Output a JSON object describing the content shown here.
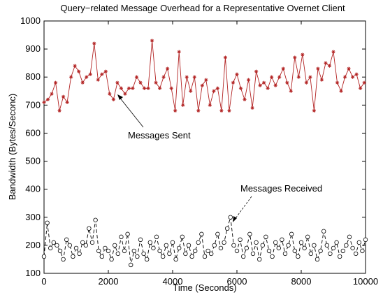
{
  "chart_data": {
    "type": "line",
    "title": "Query−related Message Overhead for a Representative Overnet Client",
    "xlabel": "Time (Seconds)",
    "ylabel": "Bandwidth (Bytes/Seconc)",
    "xlim": [
      0,
      10000
    ],
    "ylim": [
      100,
      1000
    ],
    "xticks": [
      0,
      2000,
      4000,
      6000,
      8000,
      10000
    ],
    "yticks": [
      100,
      200,
      300,
      400,
      500,
      600,
      700,
      800,
      900,
      1000
    ],
    "grid": false,
    "series": [
      {
        "name": "Messages Sent",
        "color": "#b22222",
        "marker": "star",
        "linestyle": "solid",
        "x": [
          0,
          120,
          240,
          360,
          480,
          600,
          720,
          840,
          960,
          1080,
          1200,
          1320,
          1440,
          1560,
          1680,
          1800,
          1920,
          2040,
          2160,
          2280,
          2400,
          2520,
          2640,
          2760,
          2880,
          3000,
          3120,
          3240,
          3360,
          3480,
          3600,
          3720,
          3840,
          3960,
          4080,
          4200,
          4320,
          4440,
          4560,
          4680,
          4800,
          4920,
          5040,
          5160,
          5280,
          5400,
          5520,
          5640,
          5760,
          5880,
          6000,
          6120,
          6240,
          6360,
          6480,
          6600,
          6720,
          6840,
          6960,
          7080,
          7200,
          7320,
          7440,
          7560,
          7680,
          7800,
          7920,
          8040,
          8160,
          8280,
          8400,
          8520,
          8640,
          8760,
          8880,
          9000,
          9120,
          9240,
          9360,
          9480,
          9600,
          9720,
          9840,
          9960
        ],
        "y": [
          710,
          720,
          740,
          780,
          680,
          730,
          710,
          800,
          840,
          820,
          780,
          800,
          810,
          920,
          790,
          810,
          820,
          740,
          720,
          780,
          760,
          740,
          760,
          760,
          800,
          780,
          760,
          760,
          930,
          780,
          760,
          800,
          830,
          760,
          680,
          890,
          700,
          800,
          750,
          800,
          680,
          770,
          790,
          700,
          750,
          760,
          680,
          870,
          680,
          780,
          810,
          760,
          720,
          790,
          690,
          820,
          770,
          780,
          760,
          800,
          770,
          800,
          830,
          780,
          750,
          870,
          800,
          880,
          780,
          800,
          680,
          830,
          790,
          850,
          840,
          890,
          780,
          750,
          800,
          830,
          800,
          810,
          760,
          780
        ],
        "labels": {
          "annotation": "Messages Sent"
        }
      },
      {
        "name": "Messages Received",
        "color": "#000000",
        "marker": "circle",
        "linestyle": "dashed",
        "x": [
          0,
          100,
          200,
          300,
          400,
          500,
          600,
          700,
          800,
          900,
          1000,
          1100,
          1200,
          1300,
          1400,
          1500,
          1600,
          1700,
          1800,
          1900,
          2000,
          2100,
          2200,
          2300,
          2400,
          2500,
          2600,
          2700,
          2800,
          2900,
          3000,
          3100,
          3200,
          3300,
          3400,
          3500,
          3600,
          3700,
          3800,
          3900,
          4000,
          4100,
          4200,
          4300,
          4400,
          4500,
          4600,
          4700,
          4800,
          4900,
          5000,
          5100,
          5200,
          5300,
          5400,
          5500,
          5600,
          5700,
          5800,
          5900,
          6000,
          6100,
          6200,
          6300,
          6400,
          6500,
          6600,
          6700,
          6800,
          6900,
          7000,
          7100,
          7200,
          7300,
          7400,
          7500,
          7600,
          7700,
          7800,
          7900,
          8000,
          8100,
          8200,
          8300,
          8400,
          8500,
          8600,
          8700,
          8800,
          8900,
          9000,
          9100,
          9200,
          9300,
          9400,
          9500,
          9600,
          9700,
          9800,
          9900,
          10000
        ],
        "y": [
          160,
          280,
          190,
          210,
          200,
          180,
          150,
          220,
          200,
          160,
          190,
          170,
          210,
          200,
          260,
          210,
          290,
          180,
          160,
          190,
          180,
          150,
          200,
          170,
          230,
          180,
          240,
          130,
          180,
          160,
          220,
          170,
          150,
          210,
          190,
          230,
          180,
          160,
          200,
          170,
          210,
          150,
          190,
          230,
          170,
          200,
          160,
          180,
          210,
          240,
          160,
          180,
          170,
          200,
          240,
          190,
          210,
          260,
          300,
          200,
          180,
          220,
          160,
          190,
          240,
          170,
          210,
          150,
          200,
          230,
          180,
          160,
          210,
          190,
          220,
          170,
          200,
          240,
          180,
          160,
          210,
          190,
          230,
          170,
          200,
          150,
          180,
          250,
          200,
          170,
          190,
          210,
          160,
          180,
          200,
          230,
          190,
          170,
          210,
          180,
          220
        ],
        "labels": {
          "annotation": "Messages Received"
        }
      }
    ]
  }
}
